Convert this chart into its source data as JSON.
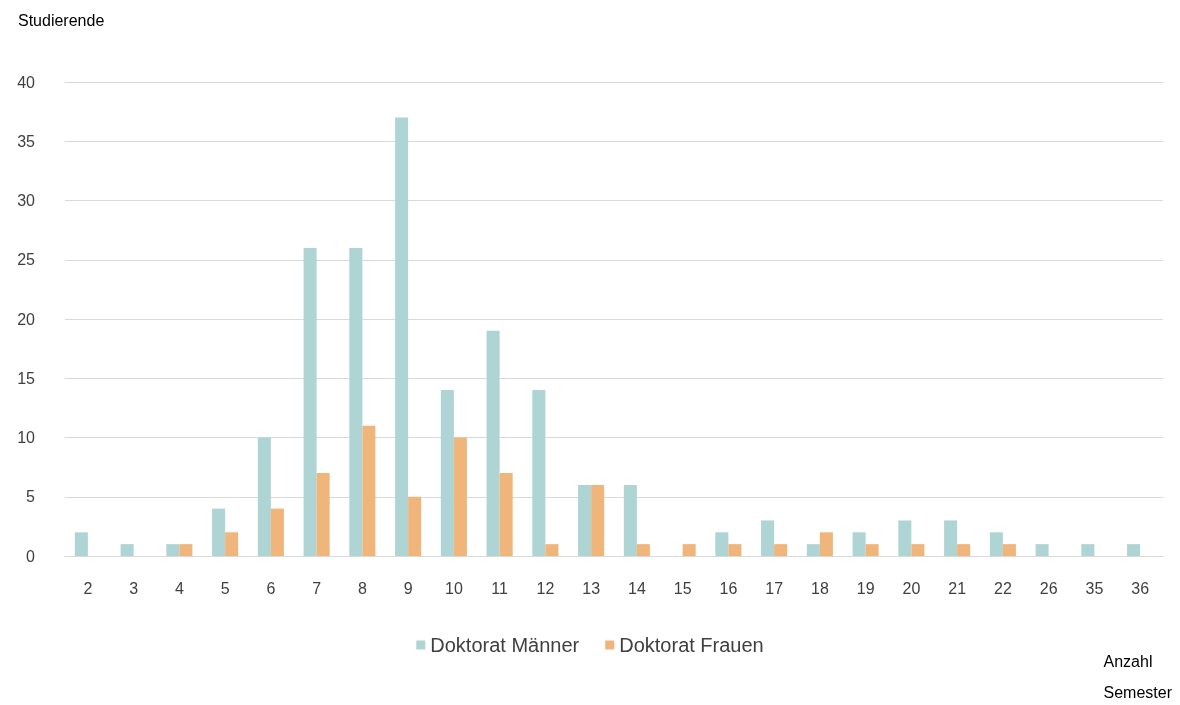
{
  "chart_data": {
    "type": "bar",
    "ylabel": "Studierende",
    "xlabel": "Anzahl\nSemester",
    "categories": [
      "2",
      "3",
      "4",
      "5",
      "6",
      "7",
      "8",
      "9",
      "10",
      "11",
      "12",
      "13",
      "14",
      "15",
      "16",
      "17",
      "18",
      "19",
      "20",
      "21",
      "22",
      "26",
      "35",
      "36"
    ],
    "series": [
      {
        "name": "Doktorat Männer",
        "color": "#aed4d4",
        "values": [
          2,
          1,
          1,
          4,
          10,
          26,
          26,
          37,
          14,
          19,
          14,
          6,
          6,
          0,
          2,
          3,
          1,
          2,
          3,
          3,
          2,
          1,
          1,
          1
        ]
      },
      {
        "name": "Doktorat Frauen",
        "color": "#f0b57b",
        "values": [
          0,
          0,
          1,
          2,
          4,
          7,
          11,
          5,
          10,
          7,
          1,
          6,
          1,
          1,
          1,
          1,
          2,
          1,
          1,
          1,
          1,
          0,
          0,
          0
        ]
      }
    ],
    "ylim": [
      0,
      40
    ],
    "yticks": [
      0,
      5,
      10,
      15,
      20,
      25,
      30,
      35,
      40
    ],
    "grid": "y",
    "legend": "bottom"
  }
}
